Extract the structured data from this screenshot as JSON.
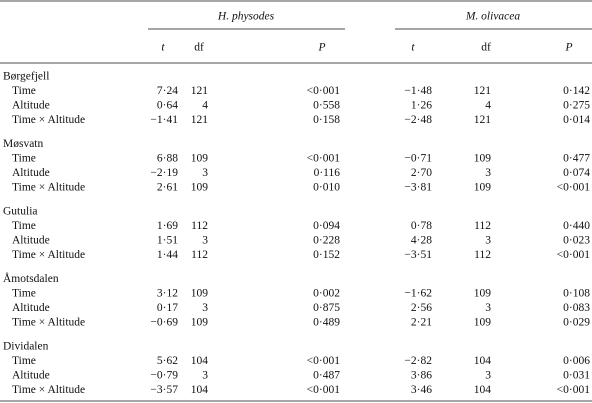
{
  "table": {
    "groups": [
      "H. physodes",
      "M. olivacea"
    ],
    "columns": [
      "t",
      "df",
      "P",
      "t",
      "df",
      "P"
    ],
    "sections": [
      {
        "site": "Børgefjell",
        "rows": [
          {
            "label": "Time",
            "cells": [
              "7·24",
              "121",
              "<0·001",
              "−1·48",
              "121",
              "0·142"
            ]
          },
          {
            "label": "Altitude",
            "cells": [
              "0·64",
              "4",
              "0·558",
              "1·26",
              "4",
              "0·275"
            ]
          },
          {
            "label": "Time × Altitude",
            "cells": [
              "−1·41",
              "121",
              "0·158",
              "−2·48",
              "121",
              "0·014"
            ]
          }
        ]
      },
      {
        "site": "Møsvatn",
        "rows": [
          {
            "label": "Time",
            "cells": [
              "6·88",
              "109",
              "<0·001",
              "−0·71",
              "109",
              "0·477"
            ]
          },
          {
            "label": "Altitude",
            "cells": [
              "−2·19",
              "3",
              "0·116",
              "2·70",
              "3",
              "0·074"
            ]
          },
          {
            "label": "Time × Altitude",
            "cells": [
              "2·61",
              "109",
              "0·010",
              "−3·81",
              "109",
              "<0·001"
            ]
          }
        ]
      },
      {
        "site": "Gutulia",
        "rows": [
          {
            "label": "Time",
            "cells": [
              "1·69",
              "112",
              "0·094",
              "0·78",
              "112",
              "0·440"
            ]
          },
          {
            "label": "Altitude",
            "cells": [
              "1·51",
              "3",
              "0·228",
              "4·28",
              "3",
              "0·023"
            ]
          },
          {
            "label": "Time × Altitude",
            "cells": [
              "1·44",
              "112",
              "0·152",
              "−3·51",
              "112",
              "<0·001"
            ]
          }
        ]
      },
      {
        "site": "Åmotsdalen",
        "rows": [
          {
            "label": "Time",
            "cells": [
              "3·12",
              "109",
              "0·002",
              "−1·62",
              "109",
              "0·108"
            ]
          },
          {
            "label": "Altitude",
            "cells": [
              "0·17",
              "3",
              "0·875",
              "2·56",
              "3",
              "0·083"
            ]
          },
          {
            "label": "Time × Altitude",
            "cells": [
              "−0·69",
              "109",
              "0·489",
              "2·21",
              "109",
              "0·029"
            ]
          }
        ]
      },
      {
        "site": "Dividalen",
        "rows": [
          {
            "label": "Time",
            "cells": [
              "5·62",
              "104",
              "<0·001",
              "−2·82",
              "104",
              "0·006"
            ]
          },
          {
            "label": "Altitude",
            "cells": [
              "−0·79",
              "3",
              "0·487",
              "3·86",
              "3",
              "0·031"
            ]
          },
          {
            "label": "Time × Altitude",
            "cells": [
              "−3·57",
              "104",
              "<0·001",
              "3·46",
              "104",
              "<0·001"
            ]
          }
        ]
      }
    ]
  }
}
